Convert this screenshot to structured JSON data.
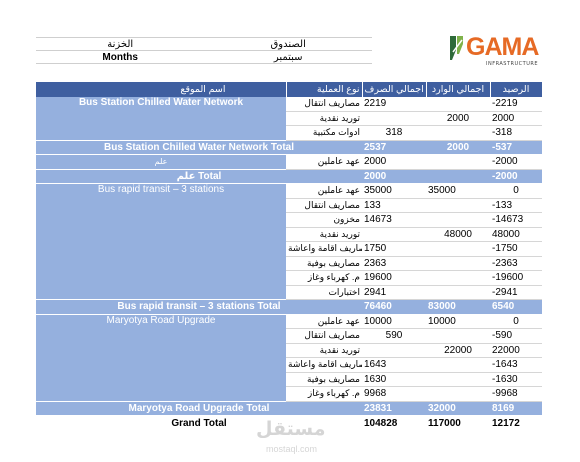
{
  "header": {
    "cashbox_label": "الصندوق",
    "treasury_label": "الخزنة",
    "cashbox_value": "سبتمبر",
    "treasury_value": "Months"
  },
  "logo": {
    "text": "GAMA",
    "subtext": "INFRASTRUCTURE",
    "color": "#e66a25"
  },
  "columns": {
    "site": "اسم الموقع",
    "type": "نوع العملية",
    "spend": "اجمالي الصرف",
    "income": "اجمالي الوارد",
    "balance": "الرصيد"
  },
  "groups": [
    {
      "site": "Bus Station Chilled Water Network",
      "rows": [
        {
          "type": "مصاريف انتقال",
          "spend": "2219",
          "income": "",
          "balance": "-2219"
        },
        {
          "type": "توريد نقدية",
          "spend": "",
          "income": "2000",
          "balance": "2000"
        },
        {
          "type": "ادوات مكتبية",
          "spend": "318",
          "income": "",
          "balance": "-318"
        }
      ],
      "total": {
        "label": "Bus Station Chilled Water Network Total",
        "spend": "2537",
        "income": "2000",
        "balance": "-537"
      }
    },
    {
      "site": "علم",
      "rows": [
        {
          "type": "عهد عاملين",
          "spend": "2000",
          "income": "",
          "balance": "-2000"
        }
      ],
      "total": {
        "label": "علم Total",
        "spend": "2000",
        "income": "",
        "balance": "-2000"
      }
    },
    {
      "site": "Bus rapid transit – 3 stations",
      "rows": [
        {
          "type": "عهد عاملين",
          "spend": "35000",
          "income": "35000",
          "balance": "0"
        },
        {
          "type": "مصاريف انتقال",
          "spend": "133",
          "income": "",
          "balance": "-133"
        },
        {
          "type": "مخزون",
          "spend": "14673",
          "income": "",
          "balance": "-14673"
        },
        {
          "type": "توريد نقدية",
          "spend": "",
          "income": "48000",
          "balance": "48000"
        },
        {
          "type": "مصاريف اقامة واعاشة",
          "spend": "1750",
          "income": "",
          "balance": "-1750"
        },
        {
          "type": "مصاريف بوفية",
          "spend": "2363",
          "income": "",
          "balance": "-2363"
        },
        {
          "type": "م. كهرباء وغاز",
          "spend": "19600",
          "income": "",
          "balance": "-19600"
        },
        {
          "type": "اختبارات",
          "spend": "2941",
          "income": "",
          "balance": "-2941"
        }
      ],
      "total": {
        "label": "Bus rapid transit – 3 stations Total",
        "spend": "76460",
        "income": "83000",
        "balance": "6540"
      }
    },
    {
      "site": "Maryotya Road Upgrade",
      "rows": [
        {
          "type": "عهد عاملين",
          "spend": "10000",
          "income": "10000",
          "balance": "0"
        },
        {
          "type": "مصاريف انتقال",
          "spend": "590",
          "income": "",
          "balance": "-590"
        },
        {
          "type": "توريد نقدية",
          "spend": "",
          "income": "22000",
          "balance": "22000"
        },
        {
          "type": "مصاريف اقامة واعاشة",
          "spend": "1643",
          "income": "",
          "balance": "-1643"
        },
        {
          "type": "مصاريف بوفية",
          "spend": "1630",
          "income": "",
          "balance": "-1630"
        },
        {
          "type": "م. كهرباء وغاز",
          "spend": "9968",
          "income": "",
          "balance": "-9968"
        }
      ],
      "total": {
        "label": "Maryotya Road Upgrade Total",
        "spend": "23831",
        "income": "32000",
        "balance": "8169"
      }
    }
  ],
  "grand_total": {
    "label": "Grand Total",
    "spend": "104828",
    "income": "117000",
    "balance": "12172"
  },
  "watermark": {
    "arabic": "مستقل",
    "latin": "mostaql.com"
  },
  "colors": {
    "header_bg": "#3f5fa0",
    "group_bg": "#95b0de"
  }
}
